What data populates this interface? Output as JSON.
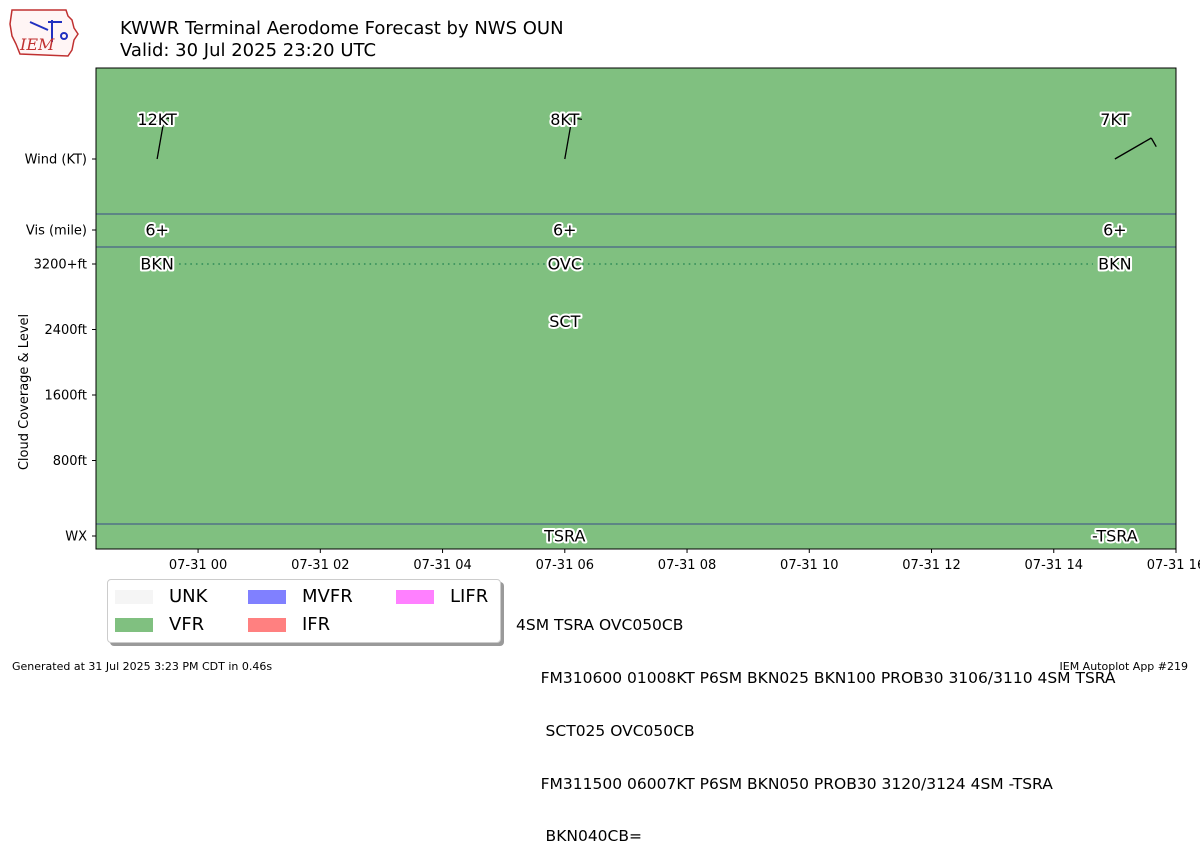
{
  "header": {
    "title_line1": "KWWR Terminal Aerodome Forecast by NWS OUN",
    "title_line2": "Valid: 30 Jul 2025 23:20 UTC",
    "logo_text": "IEM"
  },
  "chart_data": {
    "type": "timeline",
    "ylabel": "Cloud Coverage & Level",
    "x_ticks": [
      "07-31 00",
      "07-31 02",
      "07-31 04",
      "07-31 06",
      "07-31 08",
      "07-31 10",
      "07-31 12",
      "07-31 14",
      "07-31 16"
    ],
    "xlim_hours": [
      -1.67,
      16.0
    ],
    "row_labels": {
      "wind": "Wind (KT)",
      "vis": "Vis (mile)",
      "wx": "WX"
    },
    "cloud_ticks": [
      {
        "label": "3200+ft",
        "value": 3200
      },
      {
        "label": "2400ft",
        "value": 2400
      },
      {
        "label": "1600ft",
        "value": 1600
      },
      {
        "label": "800ft",
        "value": 800
      }
    ],
    "flight_category": {
      "category": "VFR",
      "color": "#80c080"
    },
    "forecasts": [
      {
        "hour": -0.67,
        "wind_dir": 10,
        "wind_label": "12KT",
        "vis": "6+",
        "clouds": [
          {
            "cover": "BKN",
            "level": 3200
          }
        ],
        "wx": ""
      },
      {
        "hour": 6.0,
        "wind_dir": 10,
        "wind_label": "8KT",
        "vis": "6+",
        "clouds": [
          {
            "cover": "SCT",
            "level": 2500
          },
          {
            "cover": "OVC",
            "level": 3200
          }
        ],
        "wx": "TSRA"
      },
      {
        "hour": 15.0,
        "wind_dir": 60,
        "wind_label": "7KT",
        "vis": "6+",
        "clouds": [
          {
            "cover": "BKN",
            "level": 3200
          }
        ],
        "wx": "-TSRA"
      }
    ],
    "ceiling_line_color": "#2e8b57"
  },
  "legend": {
    "items": [
      {
        "label": "UNK",
        "color": "#f5f5f5"
      },
      {
        "label": "MVFR",
        "color": "#8080ff"
      },
      {
        "label": "LIFR",
        "color": "#ff80ff"
      },
      {
        "label": "VFR",
        "color": "#80c080"
      },
      {
        "label": "IFR",
        "color": "#ff8080"
      }
    ]
  },
  "taf_text": [
    "4SM TSRA OVC050CB",
    "     FM310600 01008KT P6SM BKN025 BKN100 PROB30 3106/3110 4SM TSRA",
    "      SCT025 OVC050CB",
    "     FM311500 06007KT P6SM BKN050 PROB30 3120/3124 4SM -TSRA",
    "      BKN040CB="
  ],
  "footer": {
    "left": "Generated at 31 Jul 2025 3:23 PM CDT in 0.46s",
    "right": "IEM Autoplot App #219"
  }
}
